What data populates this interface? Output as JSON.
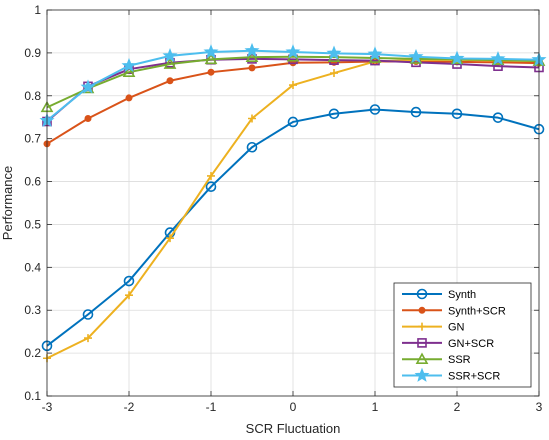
{
  "chart_data": {
    "type": "line",
    "xlabel": "SCR Fluctuation",
    "ylabel": "Performance",
    "xlim": [
      -3,
      3
    ],
    "ylim": [
      0.1,
      1
    ],
    "xticks": [
      -3,
      -2,
      -1,
      0,
      1,
      2,
      3
    ],
    "yticks": [
      0.1,
      0.2,
      0.3,
      0.4,
      0.5,
      0.6,
      0.7,
      0.8,
      0.9,
      1
    ],
    "grid": true,
    "legend_position": "bottom-right",
    "x": [
      -3,
      -2.5,
      -2,
      -1.5,
      -1,
      -0.5,
      0,
      0.5,
      1,
      1.5,
      2,
      2.5,
      3
    ],
    "series": [
      {
        "name": "Synth",
        "color": "#0072BD",
        "marker": "circle",
        "values": [
          0.217,
          0.29,
          0.368,
          0.481,
          0.588,
          0.68,
          0.739,
          0.758,
          0.768,
          0.762,
          0.758,
          0.749,
          0.722
        ]
      },
      {
        "name": "Synth+SCR",
        "color": "#D95319",
        "marker": "dot",
        "values": [
          0.688,
          0.747,
          0.795,
          0.835,
          0.855,
          0.865,
          0.877,
          0.878,
          0.88,
          0.88,
          0.879,
          0.878,
          0.876
        ]
      },
      {
        "name": "GN",
        "color": "#EDB120",
        "marker": "plus",
        "values": [
          0.188,
          0.235,
          0.335,
          0.468,
          0.613,
          0.747,
          0.825,
          0.853,
          0.88,
          0.883,
          0.884,
          0.882,
          0.881
        ]
      },
      {
        "name": "GN+SCR",
        "color": "#7E2F8E",
        "marker": "square",
        "values": [
          0.74,
          0.822,
          0.862,
          0.877,
          0.884,
          0.886,
          0.885,
          0.883,
          0.882,
          0.878,
          0.874,
          0.869,
          0.866
        ]
      },
      {
        "name": "SSR",
        "color": "#77AC30",
        "marker": "triangle",
        "values": [
          0.773,
          0.817,
          0.855,
          0.874,
          0.885,
          0.89,
          0.891,
          0.89,
          0.888,
          0.886,
          0.885,
          0.883,
          0.881
        ]
      },
      {
        "name": "SSR+SCR",
        "color": "#4DBEEE",
        "marker": "star",
        "values": [
          0.742,
          0.82,
          0.87,
          0.893,
          0.902,
          0.905,
          0.902,
          0.899,
          0.897,
          0.891,
          0.887,
          0.886,
          0.884
        ]
      }
    ]
  }
}
